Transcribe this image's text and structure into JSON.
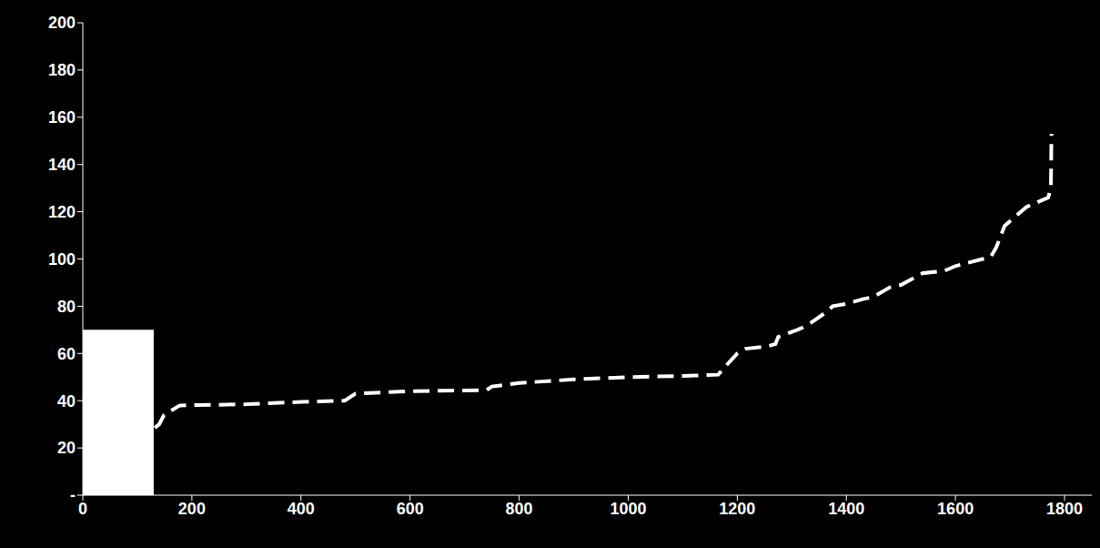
{
  "chart_data": {
    "type": "line",
    "x": [
      132,
      140,
      149,
      178,
      300,
      400,
      480,
      500,
      600,
      740,
      750,
      800,
      900,
      1000,
      1100,
      1165,
      1180,
      1200,
      1215,
      1255,
      1270,
      1275,
      1310,
      1320,
      1335,
      1360,
      1375,
      1400,
      1430,
      1450,
      1480,
      1500,
      1540,
      1580,
      1600,
      1650,
      1665,
      1675,
      1690,
      1710,
      1730,
      1760,
      1770,
      1775,
      1776
    ],
    "values": [
      28.5,
      30,
      34,
      38,
      38.5,
      39.5,
      40,
      43,
      44,
      44.5,
      46,
      47.5,
      49,
      50,
      50.5,
      51,
      55,
      60,
      62,
      63,
      64,
      67,
      70,
      71,
      73,
      77,
      80,
      81,
      83,
      84,
      88,
      89,
      94,
      95,
      97,
      100,
      101,
      105,
      114,
      118,
      122,
      125,
      126,
      130,
      153
    ],
    "color": "#ffffff",
    "line_style": "dashed",
    "xlim": [
      0,
      1850
    ],
    "xticks": [
      0,
      200,
      400,
      600,
      800,
      1000,
      1200,
      1400,
      1600,
      1800
    ],
    "ylim": [
      0,
      200
    ],
    "yticks": [
      {
        "value": 0,
        "label": "-"
      },
      20,
      40,
      60,
      80,
      100,
      120,
      140,
      160,
      180,
      200
    ],
    "grid": false,
    "highlight": {
      "x": [
        0,
        130
      ],
      "y": [
        0,
        70
      ],
      "color": "#ffffff"
    }
  }
}
